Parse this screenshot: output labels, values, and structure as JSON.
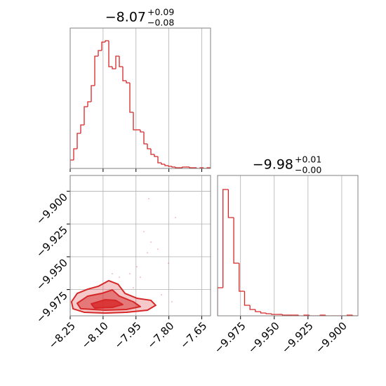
{
  "chart_data": [
    {
      "type": "histogram",
      "title": "−8.07",
      "title_upper": "+0.09",
      "title_lower": "−0.08",
      "color": "#d62728",
      "bins": [
        -8.25,
        -8.234,
        -8.218,
        -8.202,
        -8.186,
        -8.17,
        -8.154,
        -8.138,
        -8.122,
        -8.106,
        -8.09,
        -8.074,
        -8.058,
        -8.042,
        -8.026,
        -8.01,
        -7.994,
        -7.978,
        -7.962,
        -7.946,
        -7.93,
        -7.914,
        -7.898,
        -7.882,
        -7.866,
        -7.85,
        -7.834,
        -7.818,
        -7.802,
        -7.786,
        -7.77,
        -7.754,
        -7.738,
        -7.722,
        -7.706,
        -7.69,
        -7.674,
        -7.658,
        -7.642,
        -7.626,
        -7.61
      ],
      "values": [
        12,
        28,
        50,
        62,
        88,
        95,
        118,
        160,
        168,
        180,
        182,
        145,
        142,
        160,
        145,
        125,
        122,
        80,
        55,
        55,
        52,
        35,
        28,
        20,
        17,
        8,
        6,
        4,
        3,
        2,
        1,
        1,
        2,
        2,
        1,
        1,
        0,
        1,
        0,
        1
      ],
      "xlim": [
        -8.25,
        -7.61
      ],
      "ylim": [
        0,
        200
      ],
      "grid": true
    },
    {
      "type": "contour",
      "color": "#d62728",
      "contours": [
        {
          "x": [
            -8.244,
            -8.218,
            -8.17,
            -8.122,
            -8.074,
            -8.032,
            -8.0,
            -7.946,
            -7.882,
            -7.86,
            -7.898,
            -7.994,
            -8.09,
            -8.186,
            -8.237
          ],
          "y": [
            -9.9843,
            -9.9779,
            -9.9747,
            -9.9725,
            -9.9682,
            -9.9709,
            -9.9779,
            -9.9816,
            -9.9832,
            -9.987,
            -9.9907,
            -9.9923,
            -9.9929,
            -9.9923,
            -9.9896
          ]
        },
        {
          "x": [
            -8.218,
            -8.17,
            -8.106,
            -8.058,
            -8.026,
            -7.962,
            -7.93,
            -7.994,
            -8.09,
            -8.202
          ],
          "y": [
            -9.9854,
            -9.98,
            -9.9779,
            -9.9752,
            -9.98,
            -9.9843,
            -9.988,
            -9.9902,
            -9.9907,
            -9.9896
          ]
        },
        {
          "x": [
            -8.154,
            -8.09,
            -8.042,
            -8.01,
            -8.058,
            -8.138
          ],
          "y": [
            -9.9859,
            -9.9827,
            -9.9832,
            -9.9864,
            -9.9886,
            -9.9891
          ]
        }
      ],
      "x": [
        -7.962,
        -7.93,
        -7.898,
        -7.882,
        -7.914,
        -7.802,
        -7.77,
        -7.834,
        -7.946,
        -7.978,
        -7.8916,
        -8.026,
        -7.85,
        -7.786,
        -8.058
      ],
      "y": [
        -9.9736,
        -9.9656,
        -9.9469,
        -9.9388,
        -9.9308,
        -9.9549,
        -9.9201,
        -9.979,
        -9.9576,
        -9.9629,
        -9.9057,
        -9.9656,
        -9.9442,
        -9.9843,
        -9.9629
      ],
      "xlim": [
        -8.25,
        -7.61
      ],
      "ylim": [
        -9.995,
        -9.888
      ],
      "xticks": [
        {
          "value": -8.25,
          "label": "−8.25"
        },
        {
          "value": -8.1,
          "label": "−8.10"
        },
        {
          "value": -7.95,
          "label": "−7.95"
        },
        {
          "value": -7.8,
          "label": "−7.80"
        },
        {
          "value": -7.65,
          "label": "−7.65"
        }
      ],
      "yticks": [
        {
          "value": -9.9,
          "label": "−9.900"
        },
        {
          "value": -9.925,
          "label": "−9.925"
        },
        {
          "value": -9.95,
          "label": "−9.950"
        },
        {
          "value": -9.975,
          "label": "−9.975"
        }
      ],
      "grid": true
    },
    {
      "type": "histogram",
      "title": "−9.98",
      "title_upper": "+0.01",
      "title_lower": "−0.00",
      "color": "#d62728",
      "bins": [
        -9.992,
        -9.988,
        -9.984,
        -9.98,
        -9.976,
        -9.972,
        -9.968,
        -9.964,
        -9.96,
        -9.956,
        -9.952,
        -9.948,
        -9.944,
        -9.94,
        -9.936,
        -9.932,
        -9.928,
        -9.924,
        -9.92,
        -9.916,
        -9.912,
        -9.908,
        -9.904,
        -9.9,
        -9.896,
        -9.892,
        -9.888
      ],
      "values": [
        40,
        180,
        140,
        75,
        35,
        15,
        9,
        6,
        4,
        3,
        2,
        2,
        1,
        1,
        1,
        0,
        1,
        0,
        0,
        1,
        0,
        0,
        0,
        0,
        1,
        0
      ],
      "xlim": [
        -9.992,
        -9.888
      ],
      "ylim": [
        0,
        200
      ],
      "xticks": [
        {
          "value": -9.975,
          "label": "−9.975"
        },
        {
          "value": -9.95,
          "label": "−9.950"
        },
        {
          "value": -9.925,
          "label": "−9.925"
        },
        {
          "value": -9.9,
          "label": "−9.900"
        }
      ],
      "grid": true
    }
  ]
}
